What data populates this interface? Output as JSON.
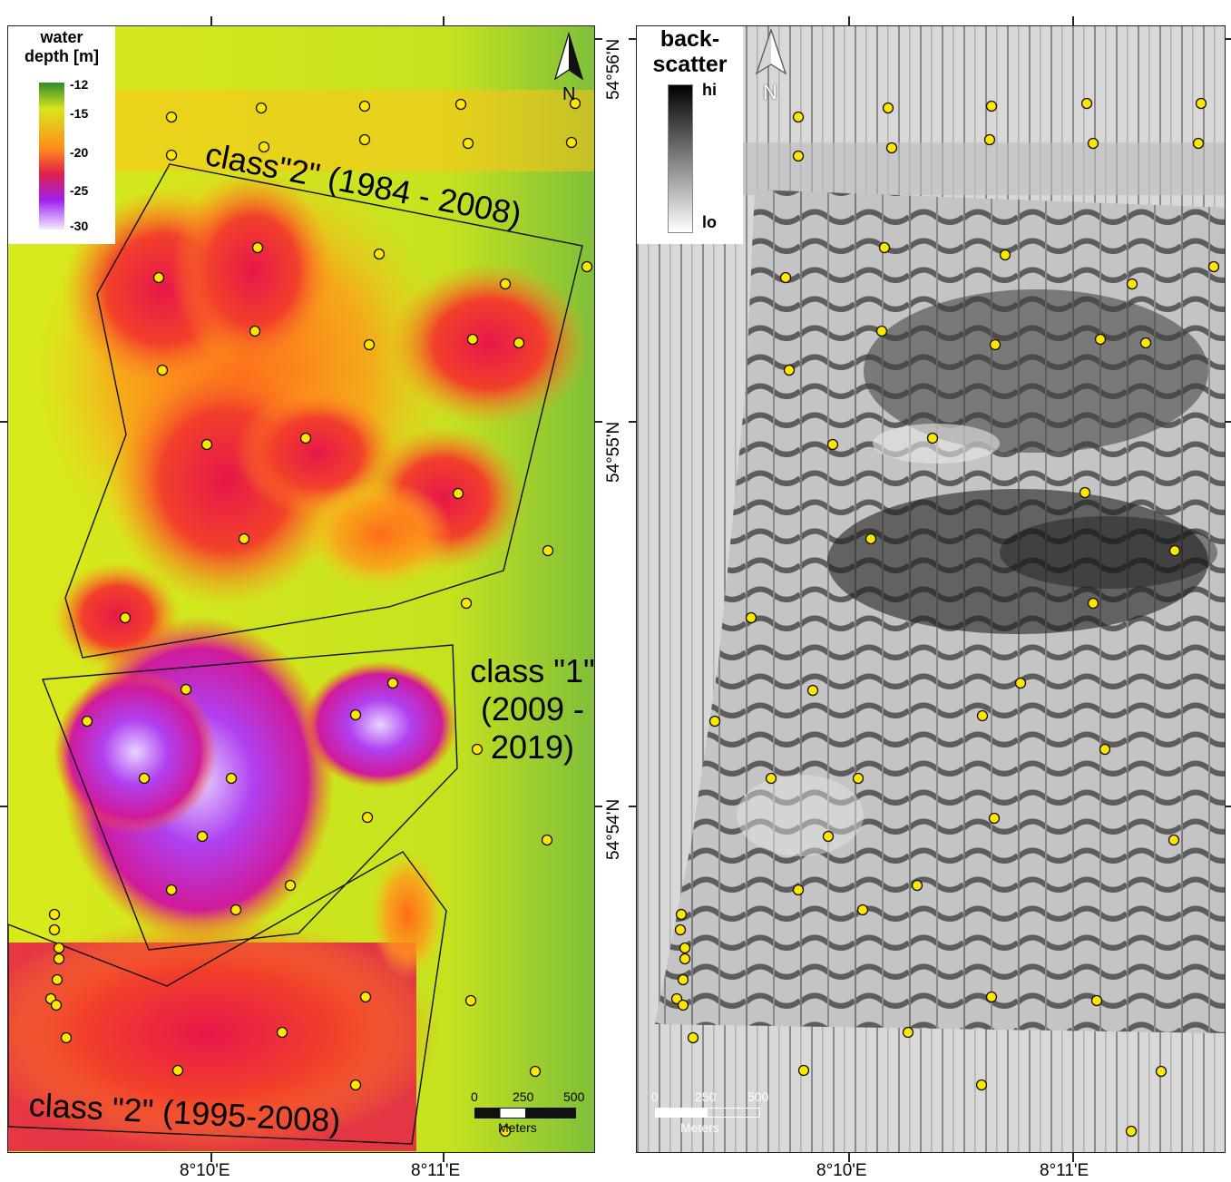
{
  "left_map": {
    "legend": {
      "title_line1": "water",
      "title_line2": "depth [m]",
      "ticks": [
        "-12",
        "-15",
        "-20",
        "-25",
        "-30"
      ],
      "colors": [
        "#2e8b2e",
        "#d9e61a",
        "#ff8c1a",
        "#e0204a",
        "#a020f0",
        "#f0e6ff"
      ]
    },
    "north_label": "N",
    "class_labels": {
      "a": "class\"2\" (1984 - 2008)",
      "b_line1": "class \"1\"",
      "b_line2": "(2009 -",
      "b_line3": "2019)",
      "c": "class \"2\" (1995-2008)"
    },
    "scalebar": {
      "ticks": [
        "0",
        "250",
        "500"
      ],
      "unit": "Meters"
    },
    "x_labels": [
      "8°10'E",
      "8°11'E"
    ]
  },
  "right_map": {
    "legend": {
      "title_line1": "back-",
      "title_line2": "scatter",
      "hi": "hi",
      "lo": "lo"
    },
    "north_label": "N",
    "scalebar": {
      "ticks": [
        "0",
        "250",
        "500"
      ],
      "unit": "Meters"
    },
    "x_labels": [
      "8°10'E",
      "8°11'E"
    ]
  },
  "lat_labels": [
    "54°56'N",
    "54°55'N",
    "54°54'N"
  ],
  "sample_point_color": "#ffe600"
}
